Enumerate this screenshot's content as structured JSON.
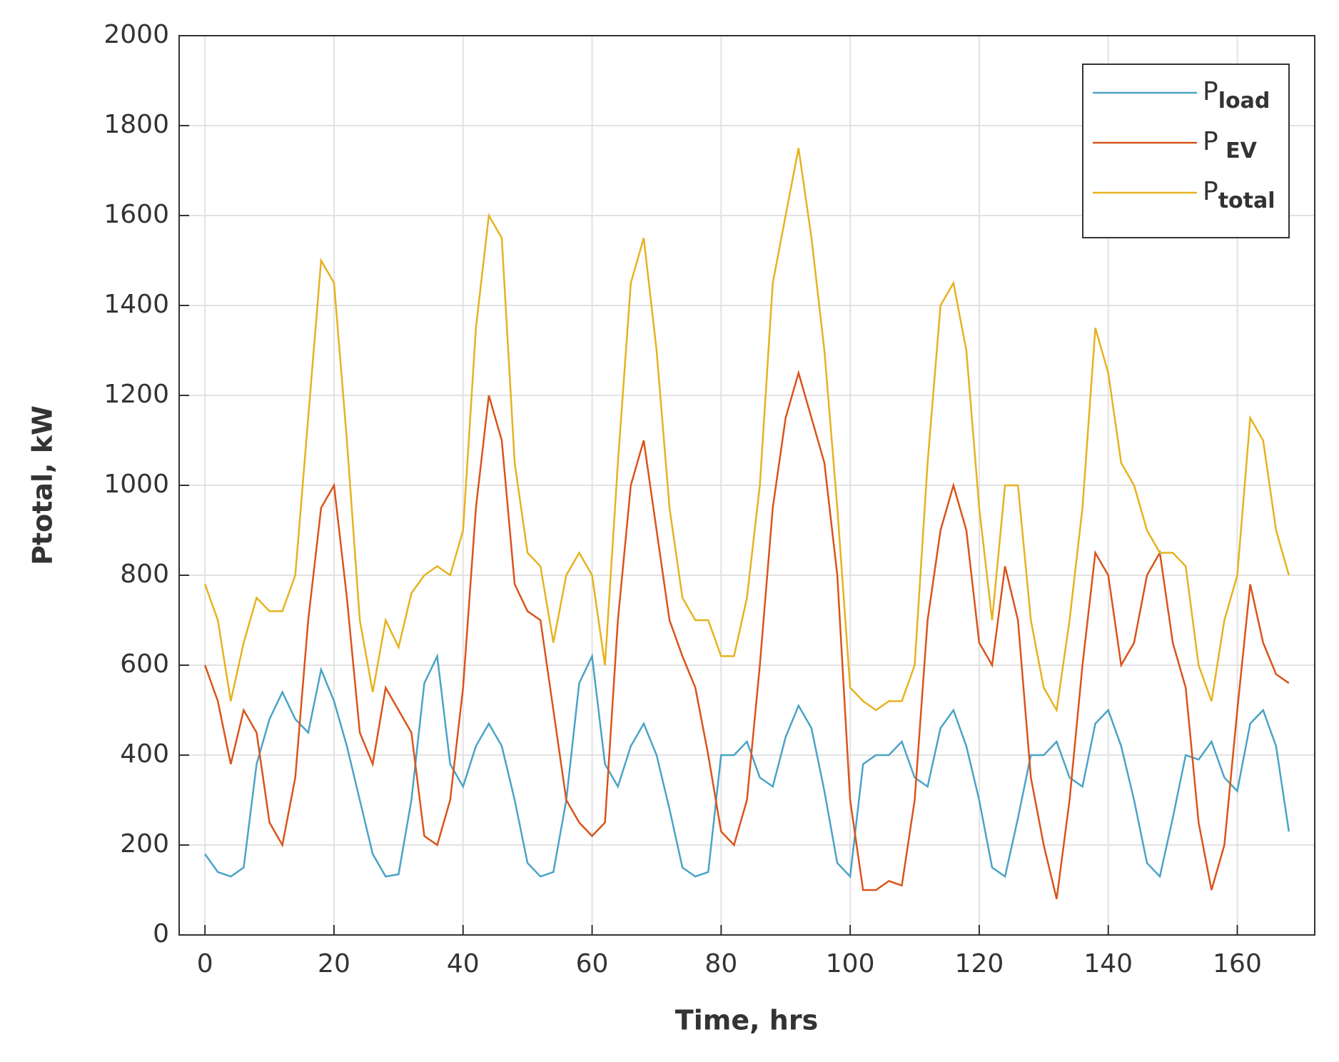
{
  "chart_data": {
    "type": "line",
    "xlabel": "Time, hrs",
    "ylabel": "Ptotal, kW",
    "xlim": [
      -4,
      172
    ],
    "xticks": [
      0,
      20,
      40,
      60,
      80,
      100,
      120,
      140,
      160
    ],
    "ylim": [
      0,
      2000
    ],
    "yticks": [
      0,
      200,
      400,
      600,
      800,
      1000,
      1200,
      1400,
      1600,
      1800,
      2000
    ],
    "grid": true,
    "legend": "northeast",
    "x": [
      0,
      2,
      4,
      6,
      8,
      10,
      12,
      14,
      16,
      18,
      20,
      22,
      24,
      26,
      28,
      30,
      32,
      34,
      36,
      38,
      40,
      42,
      44,
      46,
      48,
      50,
      52,
      54,
      56,
      58,
      60,
      62,
      64,
      66,
      68,
      70,
      72,
      74,
      76,
      78,
      80,
      82,
      84,
      86,
      88,
      90,
      92,
      94,
      96,
      98,
      100,
      102,
      104,
      106,
      108,
      110,
      112,
      114,
      116,
      118,
      120,
      122,
      124,
      126,
      128,
      130,
      132,
      134,
      136,
      138,
      140,
      142,
      144,
      146,
      148,
      150,
      152,
      154,
      156,
      158,
      160,
      162,
      164,
      166,
      168
    ],
    "series": [
      {
        "name": "Pload",
        "color": "#4aa3c6",
        "values": [
          180,
          140,
          130,
          150,
          380,
          480,
          540,
          480,
          450,
          590,
          520,
          420,
          300,
          180,
          130,
          135,
          300,
          560,
          620,
          380,
          330,
          420,
          470,
          420,
          300,
          160,
          130,
          140,
          300,
          560,
          620,
          380,
          330,
          420,
          470,
          400,
          280,
          150,
          130,
          140,
          400,
          400,
          430,
          350,
          330,
          440,
          510,
          460,
          320,
          160,
          130,
          380,
          400,
          400,
          430,
          350,
          330,
          460,
          500,
          420,
          300,
          150,
          130,
          260,
          400,
          400,
          430,
          350,
          330,
          470,
          500,
          420,
          300,
          160,
          130,
          260,
          400,
          390,
          430,
          350,
          320,
          470,
          500,
          420,
          230
        ]
      },
      {
        "name": "P EV",
        "color": "#d9541a",
        "values": [
          600,
          520,
          380,
          500,
          450,
          250,
          200,
          350,
          700,
          950,
          1000,
          750,
          450,
          380,
          550,
          500,
          450,
          220,
          200,
          300,
          550,
          950,
          1200,
          1100,
          780,
          720,
          700,
          500,
          300,
          250,
          220,
          250,
          700,
          1000,
          1100,
          900,
          700,
          620,
          550,
          400,
          230,
          200,
          300,
          600,
          950,
          1150,
          1250,
          1150,
          1050,
          800,
          300,
          100,
          100,
          120,
          110,
          300,
          700,
          900,
          1000,
          900,
          650,
          600,
          820,
          700,
          350,
          200,
          80,
          300,
          600,
          850,
          800,
          600,
          650,
          800,
          850,
          650,
          550,
          250,
          100,
          200,
          500,
          780,
          650,
          580,
          560
        ]
      },
      {
        "name": "Ptotal",
        "color": "#e6b21f",
        "values": [
          780,
          700,
          520,
          650,
          750,
          720,
          720,
          800,
          1150,
          1500,
          1450,
          1100,
          700,
          540,
          700,
          640,
          760,
          800,
          820,
          800,
          900,
          1350,
          1600,
          1550,
          1050,
          850,
          820,
          650,
          800,
          850,
          800,
          600,
          1050,
          1450,
          1550,
          1300,
          950,
          750,
          700,
          700,
          620,
          620,
          750,
          1000,
          1450,
          1600,
          1750,
          1550,
          1300,
          950,
          550,
          520,
          500,
          520,
          520,
          600,
          1050,
          1400,
          1450,
          1300,
          950,
          700,
          1000,
          1000,
          700,
          550,
          500,
          700,
          950,
          1350,
          1250,
          1050,
          1000,
          900,
          850,
          850,
          820,
          600,
          520,
          700,
          800,
          1150,
          1100,
          900,
          800
        ]
      }
    ]
  }
}
